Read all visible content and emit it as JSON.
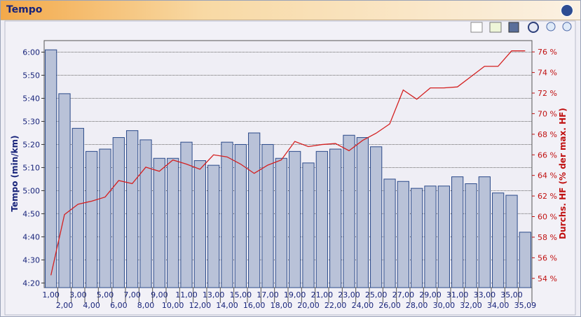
{
  "header": {
    "title": "Tempo"
  },
  "chart_data": {
    "type": "bar",
    "y_label": "Tempo (min/km)",
    "y2_label": "Durchs. HF (% der max. HF)",
    "categories": [
      "1,00",
      "2,00",
      "3,00",
      "4,00",
      "5,00",
      "6,00",
      "7,00",
      "8,00",
      "9,00",
      "10,00",
      "11,00",
      "12,00",
      "13,00",
      "14,00",
      "15,00",
      "16,00",
      "17,00",
      "18,00",
      "19,00",
      "20,00",
      "21,00",
      "22,00",
      "23,00",
      "24,00",
      "25,00",
      "26,00",
      "27,00",
      "28,00",
      "29,00",
      "30,00",
      "31,00",
      "32,00",
      "33,00",
      "34,00",
      "35,00",
      "35,09"
    ],
    "series": [
      {
        "type": "bar",
        "color": "#b9c2d8",
        "values": [
          361,
          342,
          327,
          317,
          318,
          323,
          326,
          322,
          314,
          314,
          321,
          313,
          311,
          321,
          320,
          325,
          320,
          314,
          317,
          312,
          317,
          318,
          324,
          323,
          319,
          305,
          304,
          301,
          302,
          302,
          306,
          303,
          306,
          299,
          298,
          282
        ]
      },
      {
        "type": "line",
        "axis": "y2",
        "color": "#d42020",
        "values": [
          54.3,
          60.2,
          61.2,
          61.5,
          61.9,
          63.5,
          63.2,
          64.8,
          64.4,
          65.5,
          65.1,
          64.6,
          66,
          65.8,
          65.1,
          64.2,
          65,
          65.5,
          67.3,
          66.8,
          67,
          67.1,
          66.4,
          67.4,
          68.1,
          69,
          72.3,
          71.4,
          72.5,
          72.5,
          72.6,
          73.6,
          74.6,
          74.6,
          76.1,
          76.1
        ]
      }
    ],
    "ylim": [
      258,
      365
    ],
    "yticks": [
      {
        "value": 260,
        "label": "4:20"
      },
      {
        "value": 270,
        "label": "4:30"
      },
      {
        "value": 280,
        "label": "4:40"
      },
      {
        "value": 290,
        "label": "4:50"
      },
      {
        "value": 300,
        "label": "5:00"
      },
      {
        "value": 310,
        "label": "5:10"
      },
      {
        "value": 320,
        "label": "5:20"
      },
      {
        "value": 330,
        "label": "5:30"
      },
      {
        "value": 340,
        "label": "5:40"
      },
      {
        "value": 350,
        "label": "5:50"
      },
      {
        "value": 360,
        "label": "6:00"
      }
    ],
    "y2lim": [
      53.1,
      77.1
    ],
    "y2ticks": [
      {
        "value": 54,
        "label": "54 %"
      },
      {
        "value": 56,
        "label": "56 %"
      },
      {
        "value": 58,
        "label": "58 %"
      },
      {
        "value": 60,
        "label": "60 %"
      },
      {
        "value": 62,
        "label": "62 %"
      },
      {
        "value": 64,
        "label": "64 %"
      },
      {
        "value": 66,
        "label": "66 %"
      },
      {
        "value": 68,
        "label": "68 %"
      },
      {
        "value": 70,
        "label": "70 %"
      },
      {
        "value": 72,
        "label": "72 %"
      },
      {
        "value": 74,
        "label": "74 %"
      },
      {
        "value": 76,
        "label": "76 %"
      }
    ],
    "grid": true
  }
}
